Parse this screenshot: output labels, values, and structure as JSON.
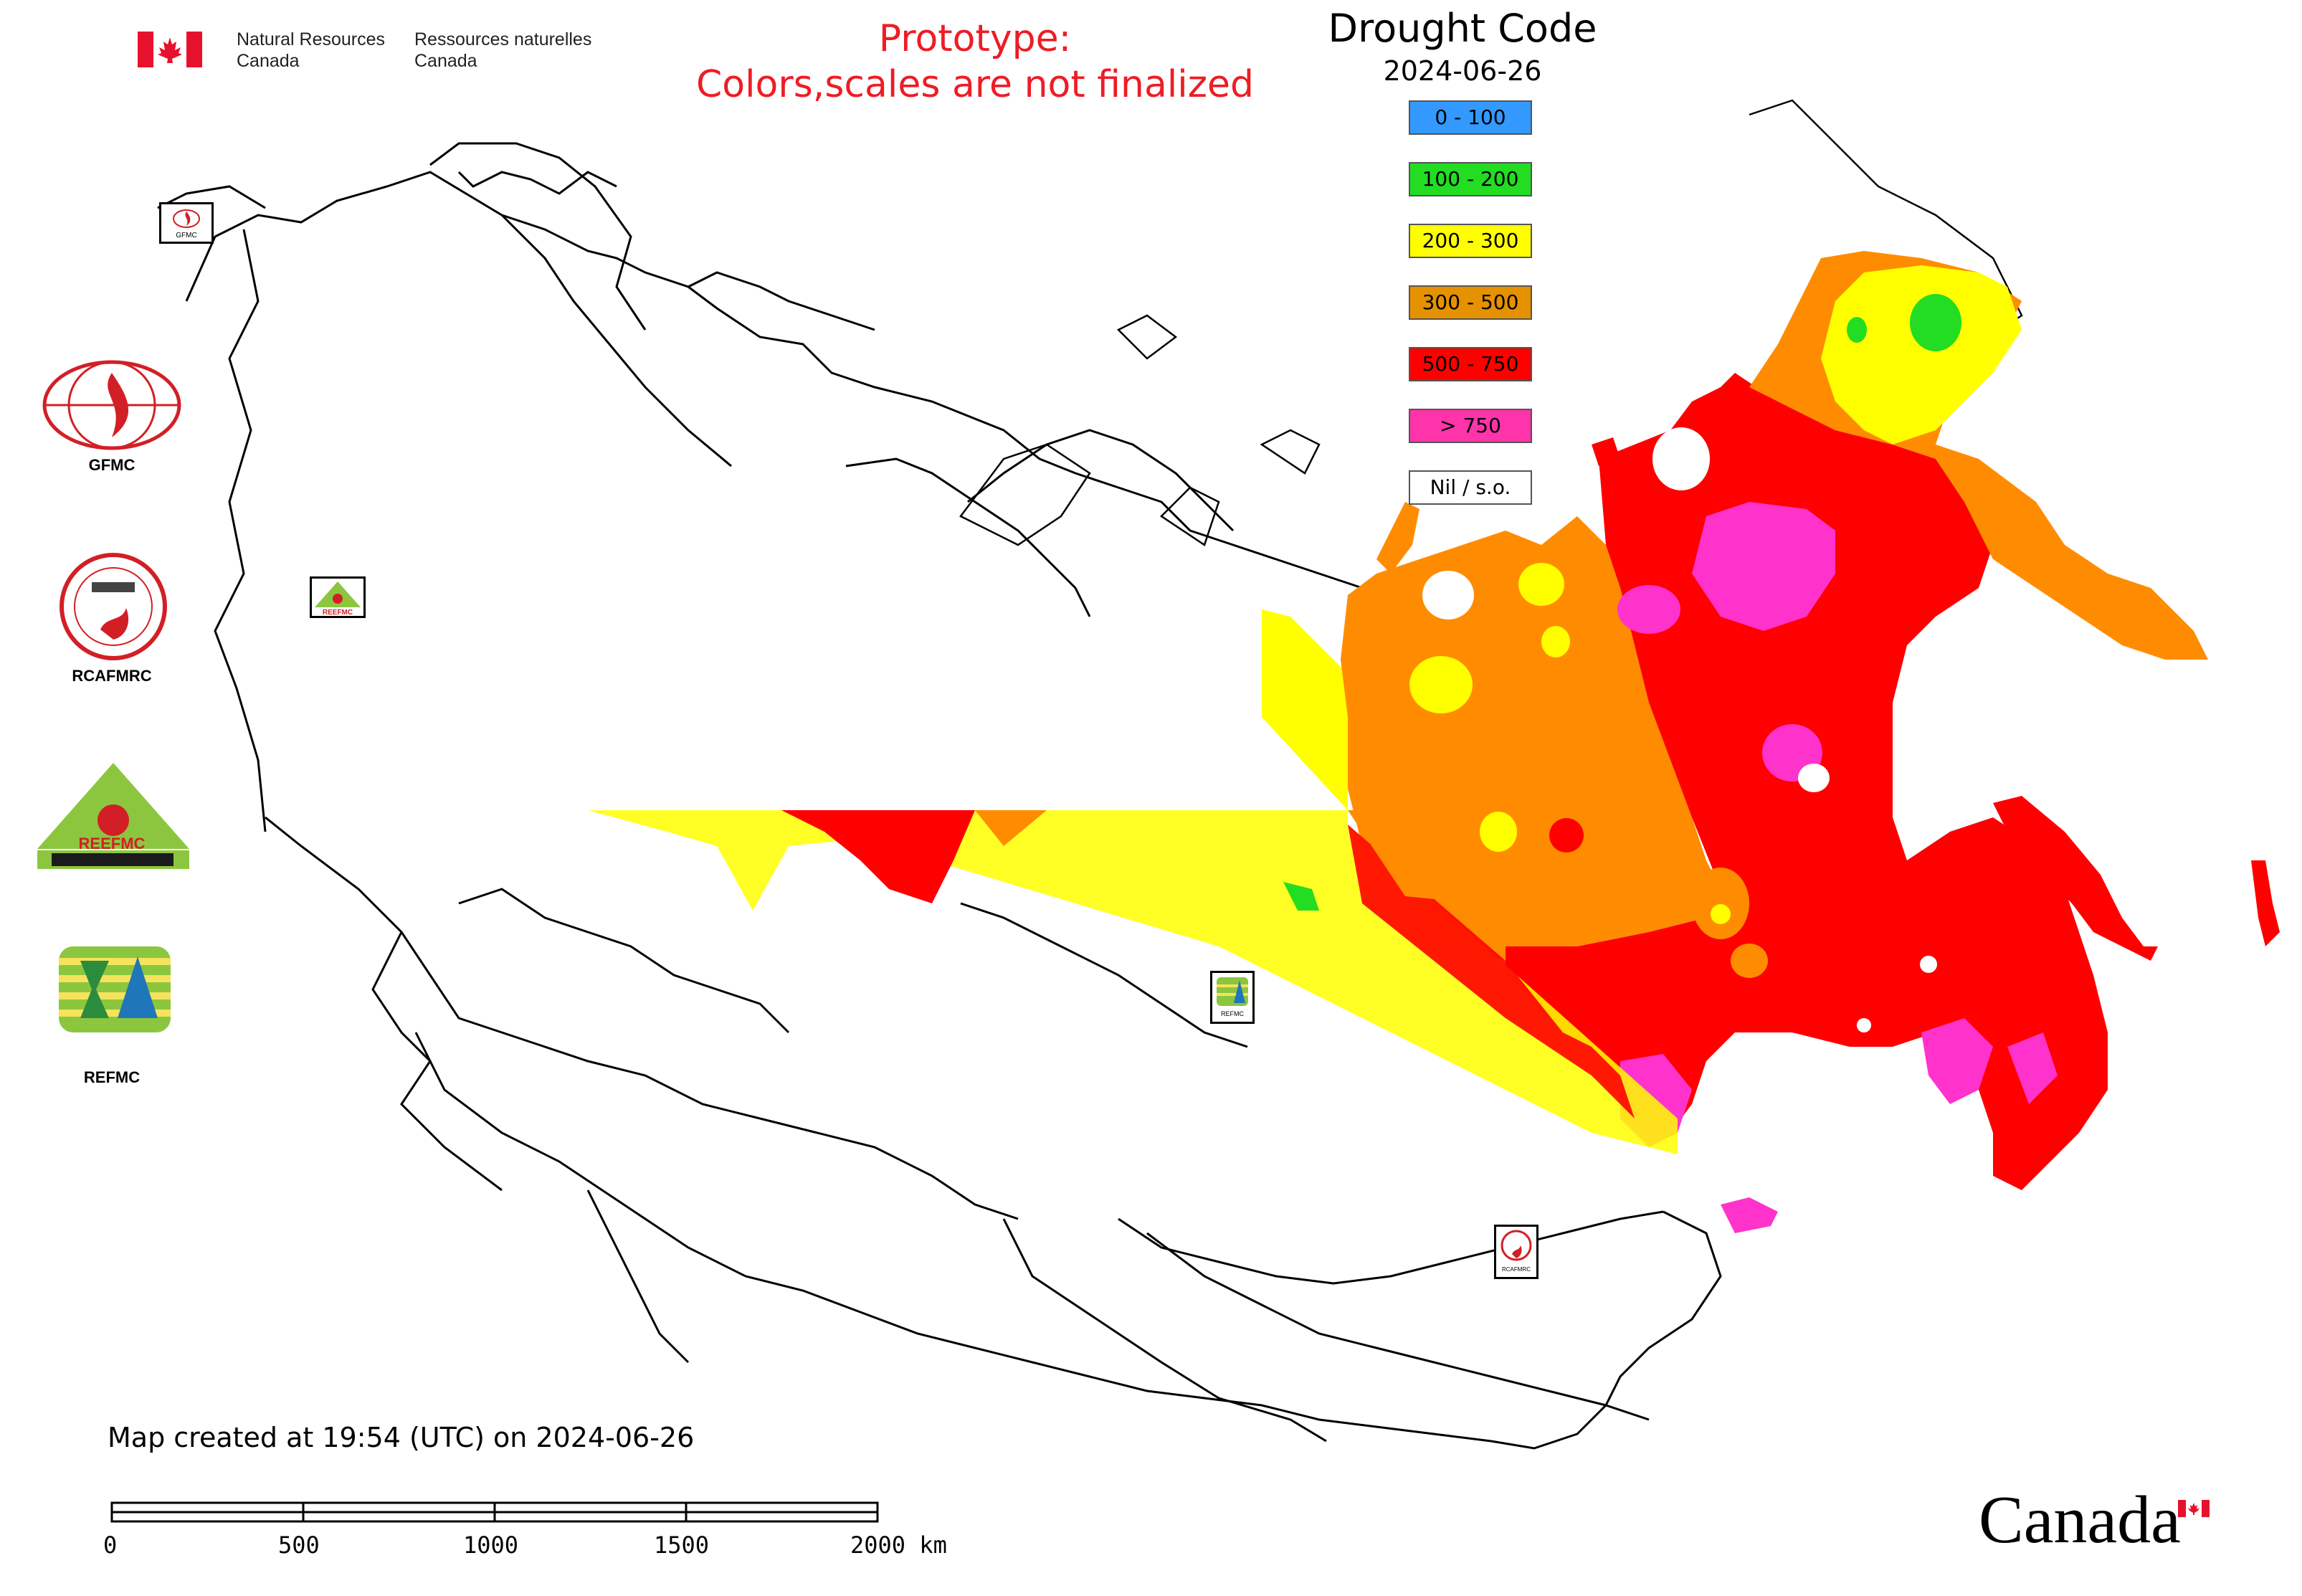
{
  "header": {
    "department_en_line1": "Natural Resources",
    "department_en_line2": "Canada",
    "department_fr_line1": "Ressources naturelles",
    "department_fr_line2": "Canada"
  },
  "prototype_notice": {
    "line1": "Prototype:",
    "line2": "Colors,scales are not finalized",
    "color": "#ee1c25"
  },
  "legend": {
    "title": "Drought Code",
    "date": "2024-06-26",
    "items": [
      {
        "label": "0 - 100",
        "color": "#3399ff"
      },
      {
        "label": "100 - 200",
        "color": "#22dd22"
      },
      {
        "label": "200 - 300",
        "color": "#ffff00"
      },
      {
        "label": "300 - 500",
        "color": "#e69100"
      },
      {
        "label": "500 - 750",
        "color": "#ff0000"
      },
      {
        "label": "> 750",
        "color": "#ff33aa"
      },
      {
        "label": "Nil / s.o.",
        "color": "#ffffff"
      }
    ]
  },
  "side_logos": [
    {
      "name": "GFMC"
    },
    {
      "name": "RCAFMRC"
    },
    {
      "name": "REEFMC"
    },
    {
      "name": "REFMC"
    }
  ],
  "map_markers": [
    {
      "name": "GFMC"
    },
    {
      "name": "REEFMC"
    },
    {
      "name": "REFMC"
    },
    {
      "name": "RCAFMRC"
    }
  ],
  "created_text": "Map created at 19:54 (UTC) on 2024-06-26",
  "scale": {
    "labels": [
      "0",
      "500",
      "1000",
      "1500",
      "2000 km"
    ]
  },
  "wordmark": "Canada"
}
